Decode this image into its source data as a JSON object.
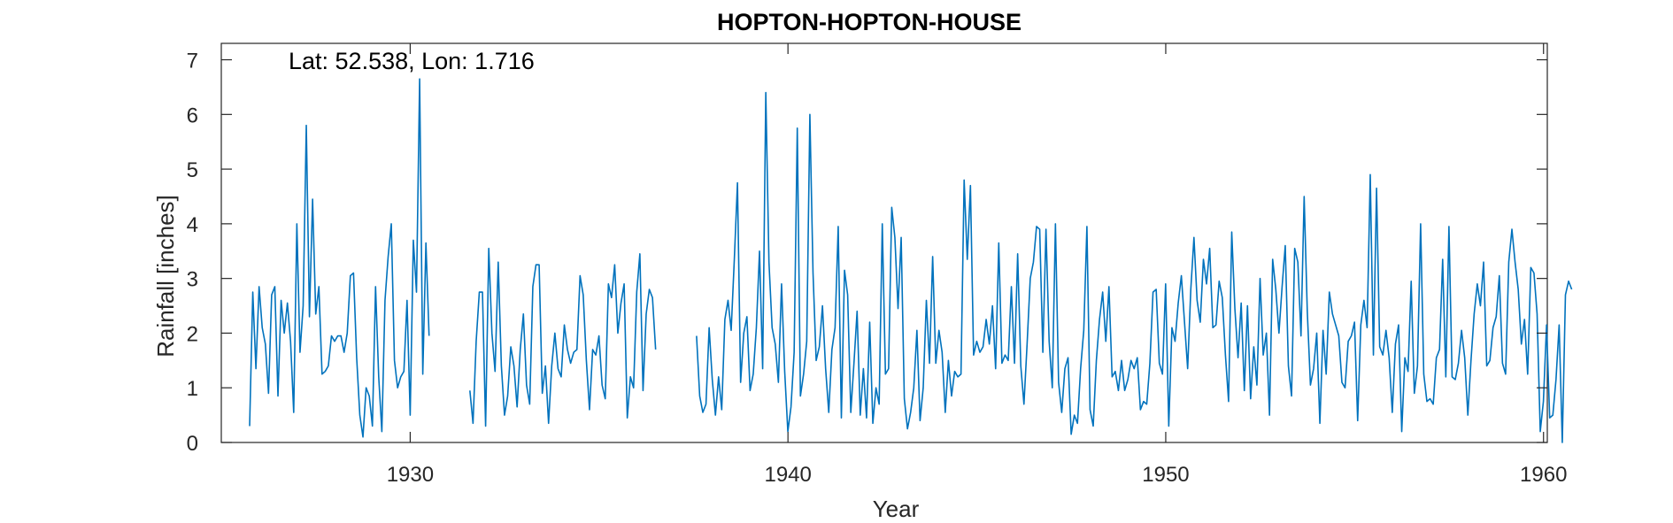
{
  "chart_data": {
    "type": "line",
    "title": "HOPTON-HOPTON-HOUSE",
    "xlabel": "Year",
    "ylabel": "Rainfall [inches]",
    "annotation": "Lat: 52.538, Lon: 1.716",
    "xlim": [
      1925.0,
      1960.1
    ],
    "ylim": [
      0,
      7.3
    ],
    "xticks": [
      1930,
      1940,
      1950,
      1960
    ],
    "yticks": [
      0,
      1,
      2,
      3,
      4,
      5,
      6,
      7
    ],
    "line_color": "#0072BD",
    "grid": false,
    "box": true,
    "series": [
      {
        "segments": [
          {
            "start": 1925.75,
            "values": [
              0.3,
              2.75,
              1.35,
              2.85,
              2.1,
              1.8,
              0.9,
              2.7,
              2.85,
              0.85,
              2.6,
              2.0,
              2.55,
              1.85,
              0.55,
              4.0,
              1.65,
              2.5,
              5.8,
              2.3,
              4.45,
              2.35,
              2.85,
              1.25,
              1.3,
              1.4,
              1.95,
              1.85,
              1.95,
              1.95,
              1.65,
              2.0,
              3.05,
              3.1,
              1.55,
              0.5,
              0.1,
              1.0,
              0.85,
              0.3,
              2.85,
              1.2,
              0.2,
              2.6,
              3.4,
              4.0,
              1.5,
              1.0,
              1.2,
              1.3,
              2.6,
              0.5,
              3.7,
              2.75,
              6.65,
              1.25,
              3.65,
              1.95
            ]
          },
          {
            "start": 1931.58,
            "values": [
              0.95,
              0.35,
              1.85,
              2.75,
              2.75,
              0.3,
              3.55,
              2.0,
              1.3,
              3.3,
              1.4,
              0.5,
              0.85,
              1.75,
              1.4,
              0.65,
              1.7,
              2.35,
              1.05,
              0.7,
              2.85,
              3.25,
              3.25,
              0.9,
              1.4,
              0.35,
              1.4,
              2.0,
              1.35,
              1.2,
              2.15,
              1.7,
              1.45,
              1.65,
              1.7,
              3.05,
              2.7,
              1.5,
              0.6,
              1.7,
              1.6,
              1.95,
              1.05,
              0.8,
              2.9,
              2.65,
              3.25,
              2.0,
              2.55,
              2.9,
              0.45,
              1.2,
              1.0,
              2.75,
              3.45,
              0.95,
              2.35,
              2.8,
              2.65,
              1.7
            ]
          },
          {
            "start": 1937.58,
            "values": [
              1.95,
              0.85,
              0.55,
              0.7,
              2.1,
              1.15,
              0.5,
              1.2,
              0.6,
              2.25,
              2.6,
              2.05,
              3.35,
              4.75,
              1.1,
              2.0,
              2.3,
              0.95,
              1.25,
              2.1,
              3.5,
              1.35,
              6.4,
              3.3,
              2.1,
              1.8,
              1.1,
              2.9,
              1.3,
              0.2,
              0.65,
              1.65,
              5.75,
              0.85,
              1.25,
              1.85,
              6.0,
              3.1,
              1.5,
              1.75,
              2.5,
              1.35,
              0.55,
              1.7,
              2.1,
              3.95,
              0.45,
              3.15,
              2.7,
              0.55,
              1.45,
              2.4,
              0.5,
              1.35,
              0.45,
              2.2,
              0.35,
              1.0,
              0.7,
              4.0,
              1.25,
              1.35,
              4.3,
              3.75,
              2.45,
              3.75,
              0.8,
              0.25,
              0.55,
              1.0,
              2.05,
              0.4,
              1.0,
              2.6,
              1.45,
              3.4,
              1.45,
              2.05,
              1.65,
              0.55,
              1.5,
              0.85,
              1.3,
              1.2,
              1.25,
              4.8,
              3.35,
              4.7,
              1.6,
              1.85,
              1.65,
              1.75,
              2.25,
              1.8,
              2.5,
              1.35,
              3.65,
              1.45,
              1.6,
              1.5,
              2.85,
              1.45,
              3.45,
              1.4,
              0.7,
              1.8,
              3.0,
              3.3,
              3.95,
              3.9,
              1.65,
              3.9,
              1.85,
              1.0,
              4.0,
              1.1,
              0.55,
              1.35,
              1.55,
              0.15,
              0.5,
              0.35,
              1.35,
              2.05,
              3.95,
              0.6,
              0.3,
              1.5,
              2.25,
              2.75,
              1.85,
              2.85,
              1.2,
              1.3,
              0.95,
              1.5,
              0.95,
              1.15,
              1.5,
              1.35,
              1.55,
              0.6,
              0.75,
              0.7,
              1.45,
              2.75,
              2.8,
              1.45,
              1.25,
              2.9,
              0.3,
              2.1,
              1.85,
              2.55,
              3.05,
              2.2,
              1.35,
              2.8,
              3.75,
              2.6,
              2.2,
              3.35,
              2.9,
              3.55,
              2.1,
              2.15,
              2.95,
              2.65,
              1.6,
              0.75,
              3.85,
              2.45,
              1.55,
              2.55,
              0.95,
              2.5,
              0.8,
              1.75,
              1.05,
              3.0,
              1.6,
              2.0,
              0.5,
              3.35,
              2.8,
              2.0,
              2.85,
              3.6,
              1.4,
              0.85,
              3.55,
              3.3,
              1.95,
              4.5,
              2.4,
              1.05,
              1.35,
              2.0,
              0.35,
              2.05,
              1.25,
              2.75,
              2.35,
              2.15,
              1.95,
              1.1,
              1.0,
              1.85,
              1.95,
              2.2,
              0.4,
              2.15,
              2.6,
              2.1,
              4.9,
              1.6,
              4.65,
              1.75,
              1.6,
              2.05,
              1.55,
              0.55,
              1.8,
              2.15,
              0.2,
              1.55,
              1.3,
              2.95,
              0.9,
              1.4,
              4.0,
              1.25,
              0.75,
              0.8,
              0.7,
              1.55,
              1.7,
              3.35,
              1.2,
              3.95,
              1.2,
              1.15,
              1.45,
              2.05,
              1.55,
              0.5,
              1.5,
              2.35,
              2.9,
              2.5,
              3.3,
              1.4,
              1.5,
              2.1,
              2.3,
              3.05,
              1.45,
              1.25,
              3.3,
              3.9,
              3.3,
              2.8,
              1.8,
              2.25,
              1.25,
              3.2,
              3.1,
              2.35,
              0.2,
              0.75,
              2.15,
              0.45,
              0.5,
              1.15,
              2.15,
              0.0,
              2.7,
              2.95,
              2.8
            ]
          }
        ]
      }
    ]
  }
}
